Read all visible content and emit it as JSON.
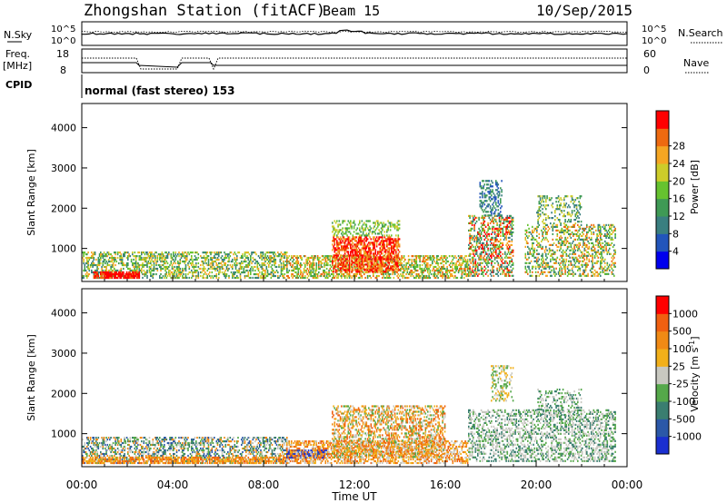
{
  "header": {
    "station": "Zhongshan Station (fitACF)",
    "beam": "Beam 15",
    "date": "10/Sep/2015"
  },
  "top_panels": {
    "nsky_label": "N.Sky",
    "nsky_ticks": [
      "10^5",
      "10^0"
    ],
    "nsearch_label": "N.Search",
    "nsearch_ticks": [
      "10^5",
      "10^0"
    ],
    "freq_label_1": "Freq.",
    "freq_label_2": "[MHz]",
    "freq_ticks": [
      "18",
      "8"
    ],
    "nave_label": "Nave",
    "nave_ticks": [
      "60",
      "0"
    ],
    "cpid_label": "CPID",
    "cpid_text": "normal (fast stereo) 153"
  },
  "chart_data": [
    {
      "type": "heatmap",
      "name": "power",
      "ylabel": "Slant Range [km]",
      "ylim": [
        180,
        4600
      ],
      "yticks": [
        "1000",
        "2000",
        "3000",
        "4000"
      ],
      "colorbar": {
        "label": "Power [dB]",
        "ticks": [
          "4",
          "8",
          "12",
          "16",
          "20",
          "24",
          "28"
        ],
        "colors": [
          "#0000ee",
          "#2255bb",
          "#3a7f80",
          "#3f9a55",
          "#66c22f",
          "#cdcc2a",
          "#f5a623",
          "#ee6a10",
          "#ff0000"
        ]
      }
    },
    {
      "type": "heatmap",
      "name": "velocity",
      "ylabel": "Slant Range [km]",
      "ylim": [
        180,
        4600
      ],
      "yticks": [
        "1000",
        "2000",
        "3000",
        "4000"
      ],
      "colorbar": {
        "label": "Velocity [m s",
        "label_sup": "-1",
        "label_end": "]",
        "ticks": [
          "1000",
          "500",
          "100",
          "25",
          "-25",
          "-100",
          "-500",
          "-1000"
        ],
        "colors": [
          "#1a2fd0",
          "#2b58a8",
          "#3a7e70",
          "#55a84a",
          "#c8c8c0",
          "#f2b01a",
          "#f08a15",
          "#f06010",
          "#ff0000"
        ]
      }
    }
  ],
  "x_axis": {
    "ticks": [
      "00:00",
      "04:00",
      "08:00",
      "12:00",
      "16:00",
      "20:00",
      "00:00"
    ],
    "label": "Time UT"
  }
}
